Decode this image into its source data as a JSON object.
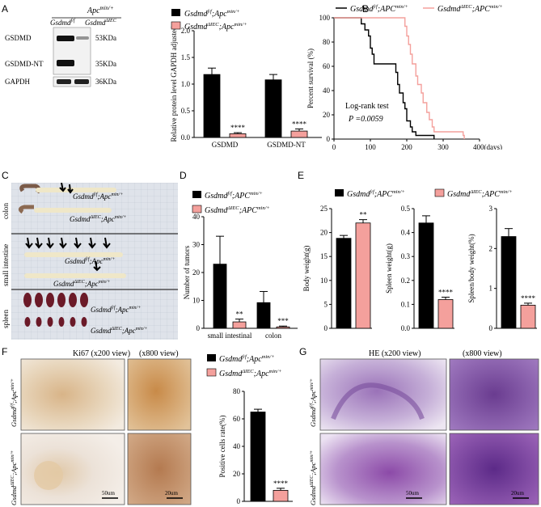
{
  "panels": {
    "A": {
      "letter": "A",
      "blot": {
        "group": "Apc",
        "group_sup": "min/+",
        "lane1": "Gsdmd",
        "lane1_sup": "f/f",
        "lane2": "Gsdmd",
        "lane2_sup": "ΔIEC",
        "band_labels": [
          "GSDMD",
          "GSDMD-NT",
          "GAPDH"
        ],
        "band_sizes": [
          "53KDa",
          "35KDa",
          "36KDa"
        ]
      },
      "chart_data": {
        "type": "bar",
        "categories": [
          "GSDMD",
          "GSDMD-NT"
        ],
        "ylabel": "Relative protein level GAPDH adjusted",
        "ylim": [
          0,
          2.0
        ],
        "yticks": [
          "0.0",
          "0.5",
          "1.0",
          "1.5",
          "2.0"
        ],
        "series": [
          {
            "name": "Gsdmd f/f;Apc min/+",
            "values": [
              1.18,
              1.08
            ],
            "errors": [
              0.12,
              0.1
            ],
            "color": "#000000"
          },
          {
            "name": "Gsdmd ΔIEC;Apc min/+",
            "values": [
              0.07,
              0.12
            ],
            "errors": [
              0.02,
              0.04
            ],
            "color": "#f4a09c"
          }
        ],
        "annotations": [
          "****",
          "****"
        ],
        "legend": [
          {
            "base": "Gsdmd",
            "sup": "f/f",
            "mid": ";Apc",
            "sup2": "min/+"
          },
          {
            "base": "Gsdmd",
            "sup": "ΔIEC",
            "mid": ";Apc",
            "sup2": "min/+"
          }
        ]
      }
    },
    "B": {
      "letter": "B",
      "chart_data": {
        "type": "line",
        "ylabel": "Percent survival (%)",
        "xlim": [
          0,
          400
        ],
        "ylim": [
          0,
          100
        ],
        "xticks": [
          "0",
          "100",
          "200",
          "300",
          "400(days)"
        ],
        "yticks": [
          "0",
          "20",
          "40",
          "60",
          "80",
          "100"
        ],
        "annotation_1": "Log-rank test",
        "annotation_2": "P =0.0059",
        "series": [
          {
            "name": "Gsdmd f/f;APC min/+",
            "color": "#000000",
            "x": [
              0,
              70,
              75,
              85,
              95,
              100,
              105,
              110,
              165,
              170,
              175,
              180,
              190,
              195,
              200,
              210,
              215,
              225,
              250,
              275
            ],
            "y": [
              100,
              100,
              95,
              90,
              85,
              75,
              70,
              62,
              62,
              55,
              45,
              38,
              30,
              25,
              15,
              10,
              6,
              3,
              3,
              0
            ]
          },
          {
            "name": "Gsdmd ΔIEC;APC min/+",
            "color": "#f4a09c",
            "x": [
              0,
              130,
              195,
              200,
              205,
              210,
              215,
              225,
              230,
              240,
              245,
              255,
              262,
              270,
              275,
              295,
              355,
              358
            ],
            "y": [
              100,
              100,
              93,
              85,
              78,
              70,
              62,
              52,
              45,
              38,
              30,
              22,
              16,
              10,
              6,
              6,
              3,
              0
            ]
          }
        ],
        "legend": [
          {
            "base": "Gsdmd",
            "sup": "f/f",
            "mid": ";APC",
            "sup2": "min/+"
          },
          {
            "base": "Gsdmd",
            "sup": "ΔIEC",
            "mid": ";APC",
            "sup2": "min/+"
          }
        ]
      }
    },
    "C": {
      "letter": "C",
      "rows": [
        "colon",
        "small intestine",
        "spleen"
      ],
      "labels": [
        {
          "base": "Gsdmd",
          "sup": "f/f",
          "mid": ";Apc",
          "sup2": "min/+"
        },
        {
          "base": "Gsdmd",
          "sup": "ΔIEC",
          "mid": ";Apc",
          "sup2": "min/+"
        }
      ]
    },
    "D": {
      "letter": "D",
      "chart_data": {
        "type": "bar",
        "categories": [
          "small intestinal",
          "colon"
        ],
        "ylabel": "Number of tumors",
        "ylim": [
          0,
          40
        ],
        "yticks": [
          "0",
          "10",
          "20",
          "30",
          "40"
        ],
        "series": [
          {
            "name": "Gsdmd f/f;APC min/+",
            "values": [
              23,
              9.2
            ],
            "errors": [
              10,
              4
            ],
            "color": "#000000"
          },
          {
            "name": "Gsdmd ΔIEC;APC min/+",
            "values": [
              2.3,
              0.5
            ],
            "errors": [
              1,
              0.3
            ],
            "color": "#f4a09c"
          }
        ],
        "annotations": [
          "**",
          "***"
        ],
        "legend": [
          {
            "base": "Gsdmd",
            "sup": "f/f",
            "mid": ";APC",
            "sup2": "min/+"
          },
          {
            "base": "Gsdmd",
            "sup": "ΔIEC",
            "mid": ";APC",
            "sup2": "min/+"
          }
        ]
      }
    },
    "E": {
      "letter": "E",
      "legend": [
        {
          "base": "Gsdmd",
          "sup": "f/f",
          "mid": ";APC",
          "sup2": "min/+"
        },
        {
          "base": "Gsdmd",
          "sup": "ΔIEC",
          "mid": ";APC",
          "sup2": "min/+"
        }
      ],
      "chart_data": [
        {
          "type": "bar",
          "ylabel": "Body weight(g)",
          "ylim": [
            0,
            25
          ],
          "yticks": [
            "0",
            "5",
            "10",
            "15",
            "20",
            "25"
          ],
          "values": [
            18.8,
            22
          ],
          "errors": [
            0.6,
            0.7
          ],
          "annotation": "**"
        },
        {
          "type": "bar",
          "ylabel": "Spleen weight(g)",
          "ylim": [
            0,
            0.5
          ],
          "yticks": [
            "0.0",
            "0.1",
            "0.2",
            "0.3",
            "0.4",
            "0.5"
          ],
          "values": [
            0.44,
            0.12
          ],
          "errors": [
            0.03,
            0.01
          ],
          "annotation": "****"
        },
        {
          "type": "bar",
          "ylabel": "Spleen/body weight(%)",
          "ylim": [
            0,
            3
          ],
          "yticks": [
            "0",
            "1",
            "2",
            "3"
          ],
          "values": [
            2.3,
            0.58
          ],
          "errors": [
            0.2,
            0.05
          ],
          "annotation": "****"
        }
      ]
    },
    "F": {
      "letter": "F",
      "title_left": "Ki67 (x200 view)",
      "title_right": "(x800 view)",
      "row_labels": [
        {
          "base": "Gsdmd",
          "sup": "f/f",
          "mid": ";Apc",
          "sup2": "min/+"
        },
        {
          "base": "Gsdmd",
          "sup": "ΔIEC",
          "mid": ";Apc",
          "sup2": "min/+"
        }
      ],
      "scale_left": "50um",
      "scale_right": "20um",
      "chart_data": {
        "type": "bar",
        "ylabel": "Positive cells rate(%)",
        "ylim": [
          0,
          80
        ],
        "yticks": [
          "0",
          "20",
          "40",
          "60",
          "80"
        ],
        "values": [
          65,
          8
        ],
        "errors": [
          2,
          1.5
        ],
        "annotation": "****",
        "legend": [
          {
            "base": "Gsdmd",
            "sup": "f/f",
            "mid": ";Apc",
            "sup2": "min/+"
          },
          {
            "base": "Gsdmd",
            "sup": "ΔIEC",
            "mid": ";Apc",
            "sup2": "min/+"
          }
        ]
      }
    },
    "G": {
      "letter": "G",
      "title_left": "HE (x200 view)",
      "title_right": "(x800 view)",
      "row_labels": [
        {
          "base": "Gsdmd",
          "sup": "f/f",
          "mid": ";Apc",
          "sup2": "min/+"
        },
        {
          "base": "Gsdmd",
          "sup": "ΔIEC",
          "mid": ";Apc",
          "sup2": "min/+"
        }
      ],
      "scale_left": "50um",
      "scale_right": "20um"
    }
  },
  "colors": {
    "black_bar": "#000000",
    "pink_bar": "#f4a09c",
    "pink_line": "#f4a09c"
  }
}
